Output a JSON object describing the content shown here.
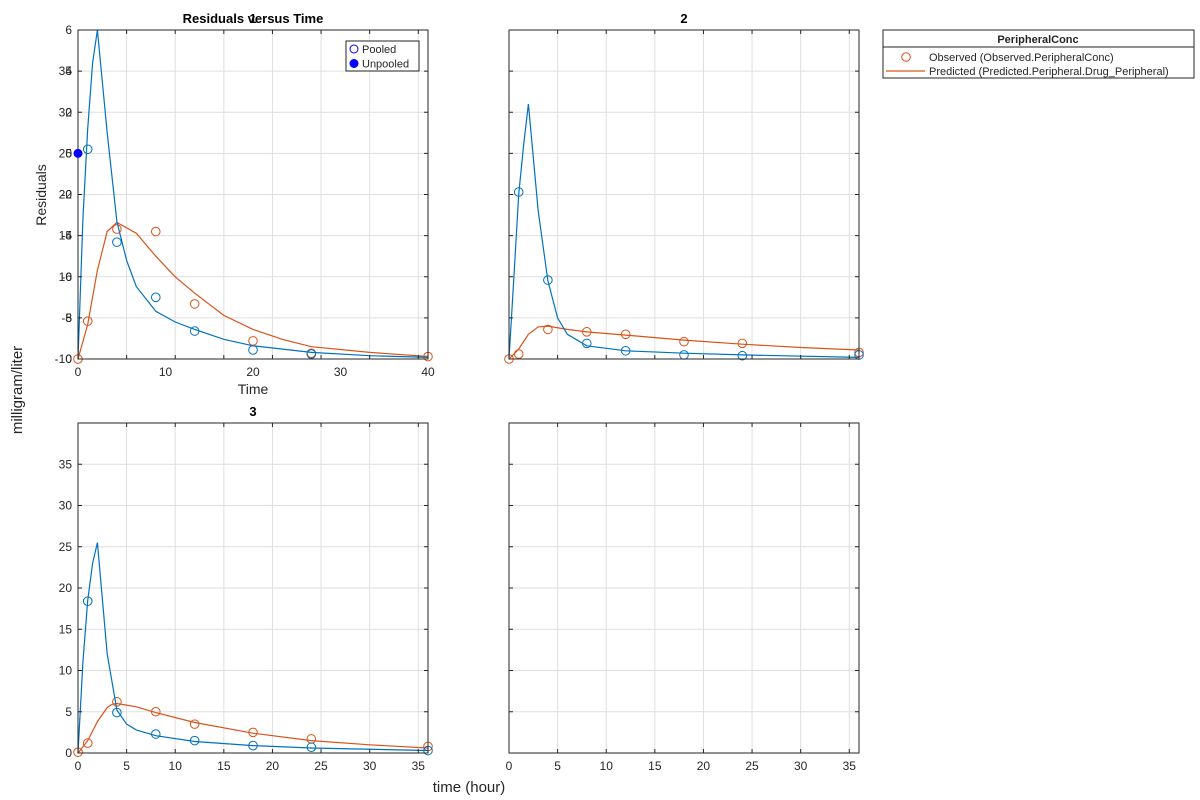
{
  "figure": {
    "ylabel": "milligram/liter",
    "xlabel": "time (hour)",
    "background": "#ffffff",
    "axes_color": "#262626",
    "grid_color": "#dfdfdf"
  },
  "colors": {
    "observed": "#D95319",
    "predicted": "#D95319",
    "central": "#0072BD",
    "pooled_marker": "#0000ff",
    "unpooled_marker": "#0000ff"
  },
  "legend": {
    "title": "PeripheralConc",
    "entries": [
      {
        "label": "Observed (Observed.PeripheralConc)",
        "marker": "circle-open"
      },
      {
        "label": "Predicted (Predicted.Peripheral.Drug_Peripheral)",
        "marker": "line"
      }
    ]
  },
  "chart_data": [
    {
      "type": "line",
      "title": "1",
      "overlay_title": "Residuals versus Time",
      "xlim": [
        0,
        36
      ],
      "ylim": [
        0,
        40
      ],
      "xticks": [
        0,
        5,
        10,
        15,
        20,
        25,
        30,
        35
      ],
      "yticks": [
        0,
        5,
        10,
        15,
        20,
        25,
        30,
        35
      ],
      "show_y_tick_labels": true,
      "show_x_tick_labels": false,
      "grid": true,
      "series": [
        {
          "name": "Observed",
          "role": "observed",
          "x": [
            0,
            1,
            4,
            8,
            12,
            18,
            24,
            36
          ],
          "y": [
            0,
            4.6,
            15.8,
            15.5,
            6.7,
            2.2,
            0.7,
            0.3
          ]
        },
        {
          "role": "predicted",
          "x": [
            0,
            1,
            2,
            3,
            4,
            6,
            8,
            10,
            12,
            15,
            18,
            21,
            24,
            30,
            36
          ],
          "y": [
            0,
            4.2,
            10.8,
            15.5,
            16.6,
            15.3,
            12.5,
            10,
            8,
            5.3,
            3.6,
            2.4,
            1.5,
            0.8,
            0.3
          ]
        },
        {
          "role": "central-observed",
          "x": [
            1,
            4,
            8,
            12,
            18,
            24
          ],
          "y": [
            25.5,
            14.2,
            7.5,
            3.4,
            1.1,
            0.6
          ]
        },
        {
          "role": "central-predicted",
          "x": [
            0,
            0.5,
            1,
            1.5,
            2,
            3,
            4,
            5,
            6,
            8,
            10,
            12,
            15,
            18,
            24,
            30,
            36
          ],
          "y": [
            0,
            17,
            28,
            36,
            40,
            27.5,
            16.7,
            12,
            8.8,
            5.8,
            4.5,
            3.6,
            2.4,
            1.6,
            0.8,
            0.4,
            0.2
          ]
        }
      ],
      "overlay": {
        "xlabel": "Time",
        "ylabel": "Residuals",
        "xlim": [
          0,
          40
        ],
        "ylim": [
          -10,
          6
        ],
        "xticks": [
          0,
          10,
          20,
          30,
          40
        ],
        "yticks": [
          -10,
          -8,
          -6,
          -4,
          -2,
          0,
          2,
          4,
          6
        ],
        "ytick_labels": [
          "-10",
          "-8",
          "-6",
          "-4",
          "-2",
          "0",
          "2",
          "4",
          "6"
        ],
        "legend": [
          {
            "label": "Pooled",
            "marker": "circle-open"
          },
          {
            "label": "Unpooled",
            "marker": "circle-filled"
          }
        ],
        "points": [
          {
            "series": "Unpooled",
            "x": 0,
            "y": 0
          }
        ]
      }
    },
    {
      "type": "line",
      "title": "2",
      "xlim": [
        0,
        36
      ],
      "ylim": [
        0,
        40
      ],
      "xticks": [
        0,
        5,
        10,
        15,
        20,
        25,
        30,
        35
      ],
      "yticks": [
        0,
        5,
        10,
        15,
        20,
        25,
        30,
        35
      ],
      "show_y_tick_labels": false,
      "show_x_tick_labels": false,
      "grid": true,
      "series": [
        {
          "role": "observed",
          "x": [
            0,
            1,
            4,
            8,
            12,
            18,
            24,
            36
          ],
          "y": [
            0,
            0.6,
            3.6,
            3.3,
            3.0,
            2.1,
            1.9,
            0.8
          ]
        },
        {
          "role": "predicted",
          "x": [
            0,
            1,
            2,
            3,
            4,
            6,
            8,
            12,
            18,
            24,
            30,
            36
          ],
          "y": [
            0,
            1.2,
            3,
            3.9,
            4.0,
            3.6,
            3.3,
            2.9,
            2.3,
            1.8,
            1.4,
            1.1
          ]
        },
        {
          "role": "central-observed",
          "x": [
            1,
            4,
            8,
            12,
            18,
            24,
            36
          ],
          "y": [
            20.3,
            9.6,
            1.9,
            1.0,
            0.5,
            0.4,
            0.5
          ]
        },
        {
          "role": "central-predicted",
          "x": [
            0,
            0.5,
            1,
            1.5,
            2,
            3,
            4,
            5,
            6,
            8,
            12,
            18,
            24,
            36
          ],
          "y": [
            0,
            10,
            20,
            26,
            31,
            18,
            9.5,
            5,
            3,
            1.6,
            1,
            0.7,
            0.5,
            0.2
          ]
        }
      ]
    },
    {
      "type": "line",
      "title": "3",
      "xlim": [
        0,
        36
      ],
      "ylim": [
        0,
        40
      ],
      "xticks": [
        0,
        5,
        10,
        15,
        20,
        25,
        30,
        35
      ],
      "yticks": [
        0,
        5,
        10,
        15,
        20,
        25,
        30,
        35
      ],
      "show_y_tick_labels": true,
      "show_x_tick_labels": true,
      "grid": true,
      "series": [
        {
          "role": "observed",
          "x": [
            0,
            1,
            4,
            8,
            12,
            18,
            24,
            36
          ],
          "y": [
            0.1,
            1.2,
            6.2,
            5.0,
            3.5,
            2.5,
            1.7,
            0.8
          ]
        },
        {
          "role": "predicted",
          "x": [
            0,
            1,
            2,
            3,
            3.5,
            4,
            6,
            8,
            12,
            18,
            24,
            30,
            36
          ],
          "y": [
            0,
            1.5,
            3.8,
            5.5,
            5.9,
            6.0,
            5.6,
            4.9,
            3.7,
            2.4,
            1.5,
            1.0,
            0.6
          ]
        },
        {
          "role": "central-observed",
          "x": [
            1,
            4,
            8,
            12,
            18,
            24,
            36
          ],
          "y": [
            18.4,
            4.9,
            2.3,
            1.5,
            0.9,
            0.7,
            0.3
          ]
        },
        {
          "role": "central-predicted",
          "x": [
            0,
            0.5,
            1,
            1.5,
            2,
            3,
            4,
            5,
            6,
            8,
            12,
            18,
            24,
            36
          ],
          "y": [
            0,
            11,
            18.5,
            23,
            25.5,
            12,
            5.2,
            3.5,
            2.8,
            2.1,
            1.4,
            0.9,
            0.6,
            0.3
          ]
        }
      ]
    },
    {
      "type": "line",
      "title": "",
      "xlim": [
        0,
        36
      ],
      "ylim": [
        0,
        40
      ],
      "xticks": [
        0,
        5,
        10,
        15,
        20,
        25,
        30,
        35
      ],
      "yticks": [
        0,
        5,
        10,
        15,
        20,
        25,
        30,
        35
      ],
      "show_y_tick_labels": false,
      "show_x_tick_labels": true,
      "grid": true,
      "series": []
    }
  ]
}
